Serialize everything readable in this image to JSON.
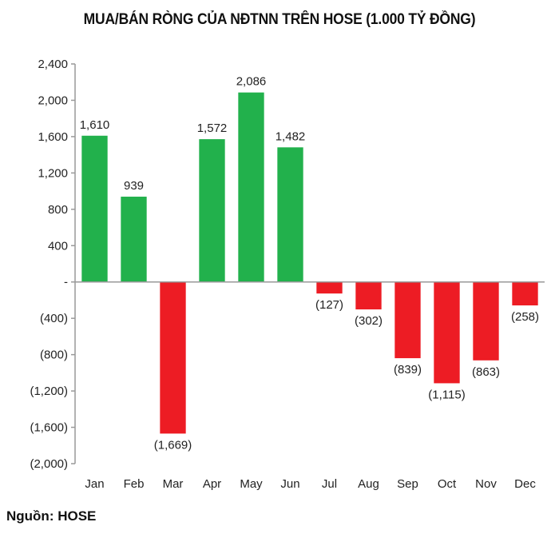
{
  "chart_data": {
    "type": "bar",
    "title": "MUA/BÁN RÒNG CỦA NĐTNN TRÊN HOSE (1.000 TỶ ĐỒNG)",
    "categories": [
      "Jan",
      "Feb",
      "Mar",
      "Apr",
      "May",
      "Jun",
      "Jul",
      "Aug",
      "Sep",
      "Oct",
      "Nov",
      "Dec"
    ],
    "values": [
      1610,
      939,
      -1669,
      1572,
      2086,
      1482,
      -127,
      -302,
      -839,
      -1115,
      -863,
      -258
    ],
    "value_labels": [
      "1,610",
      "939",
      "(1,669)",
      "1,572",
      "2,086",
      "1,482",
      "(127)",
      "(302)",
      "(839)",
      "(1,115)",
      "(863)",
      "(258)"
    ],
    "y_ticks": [
      2400,
      2000,
      1600,
      1200,
      800,
      400,
      0,
      -400,
      -800,
      -1200,
      -1600,
      -2000
    ],
    "y_tick_labels": [
      "2,400",
      "2,000",
      "1,600",
      "1,200",
      "800",
      "400",
      "-",
      "(400)",
      "(800)",
      "(1,200)",
      "(1,600)",
      "(2,000)"
    ],
    "ylim": [
      -2000,
      2400
    ],
    "xlabel": "",
    "ylabel": "",
    "grid": false,
    "legend": "none",
    "colors": {
      "positive": "#22b14c",
      "negative": "#ed1c24",
      "axis": "#999999",
      "text": "#222222"
    }
  },
  "source": "Nguồn: HOSE"
}
